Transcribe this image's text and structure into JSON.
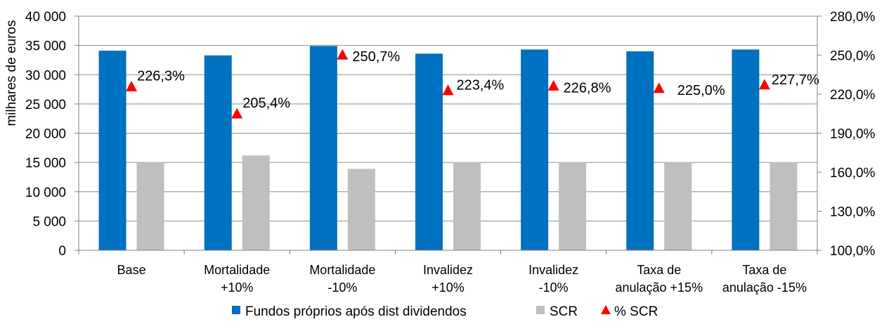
{
  "chart_data": {
    "type": "bar",
    "categories": [
      [
        "Base"
      ],
      [
        "Mortalidade",
        "+10%"
      ],
      [
        "Mortalidade",
        "-10%"
      ],
      [
        "Invalidez",
        "+10%"
      ],
      [
        "Invalidez",
        "-10%"
      ],
      [
        "Taxa de",
        "anulação +15%"
      ],
      [
        "Taxa de",
        "anulação -15%"
      ]
    ],
    "ylabel": "milhares de euros",
    "ylim": [
      0,
      40000
    ],
    "yticks": [
      0,
      5000,
      10000,
      15000,
      20000,
      25000,
      30000,
      35000,
      40000
    ],
    "ytick_labels": [
      "0",
      "5 000",
      "10 000",
      "15 000",
      "20 000",
      "25 000",
      "30 000",
      "35 000",
      "40 000"
    ],
    "y2lim": [
      1.0,
      2.8
    ],
    "y2ticks": [
      1.0,
      1.3,
      1.6,
      1.9,
      2.2,
      2.5,
      2.8
    ],
    "y2tick_labels": [
      "100,0%",
      "130,0%",
      "160,0%",
      "190,0%",
      "220,0%",
      "250,0%",
      "280,0%"
    ],
    "grid": true,
    "legend_position": "bottom",
    "series": [
      {
        "name": "Fundos próprios após dist dividendos",
        "type": "bar",
        "color": "#0070C0",
        "values": [
          34100,
          33300,
          34900,
          33600,
          34300,
          34000,
          34300
        ]
      },
      {
        "name": "SCR",
        "type": "bar",
        "color": "#BFBFBF",
        "values": [
          15100,
          16200,
          13900,
          15100,
          15100,
          15100,
          15100
        ]
      },
      {
        "name": "% SCR",
        "type": "scatter",
        "marker": "triangle",
        "color": "#FF0000",
        "axis": "right",
        "values": [
          2.263,
          2.054,
          2.507,
          2.234,
          2.268,
          2.25,
          2.277
        ],
        "labels": [
          "226,3%",
          "205,4%",
          "250,7%",
          "223,4%",
          "226,8%",
          "225,0%",
          "227,7%"
        ]
      }
    ]
  }
}
